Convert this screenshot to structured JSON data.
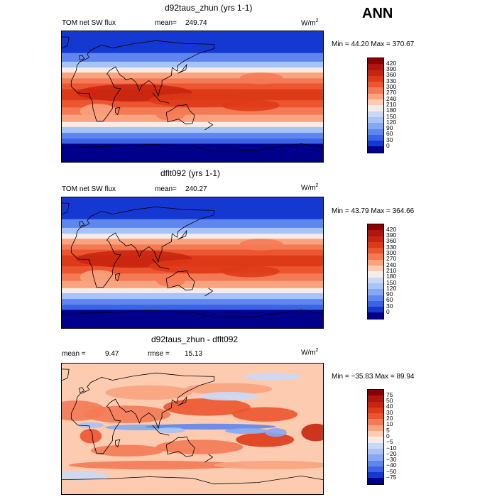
{
  "header": {
    "season": "ANN"
  },
  "panels": [
    {
      "title": "d92taus_zhun (yrs 1-1)",
      "left_label": "TOM net SW flux",
      "stat_label": "mean=",
      "stat_value": "249.74",
      "rmse_label": "",
      "rmse_value": "",
      "units": "W/m",
      "units_exp": "2",
      "min_max": "Min =  44.20 Max = 370.67",
      "kind": "field"
    },
    {
      "title": "dflt092 (yrs 1-1)",
      "left_label": "TOM net SW flux",
      "stat_label": "mean=",
      "stat_value": "240.27",
      "rmse_label": "",
      "rmse_value": "",
      "units": "W/m",
      "units_exp": "2",
      "min_max": "Min =  43.79 Max = 364.66",
      "kind": "field"
    },
    {
      "title": "d92taus_zhun - dflt092",
      "left_label": "mean =",
      "stat_label": "",
      "stat_value": "9.47",
      "rmse_label": "rmse =",
      "rmse_value": "15.13",
      "units": "W/m",
      "units_exp": "2",
      "min_max": "Min = −35.83 Max =  89.94",
      "kind": "diff"
    }
  ],
  "chart_data": [
    {
      "type": "heatmap",
      "title": "d92taus_zhun (yrs 1-1)",
      "variable": "TOM net SW flux",
      "units": "W/m^2",
      "mean": 249.74,
      "min": 44.2,
      "max": 370.67,
      "colorbar_levels": [
        "420",
        "390",
        "360",
        "330",
        "300",
        "270",
        "240",
        "210",
        "180",
        "150",
        "120",
        "90",
        "60",
        "30",
        "0"
      ],
      "colorbar_colors": [
        "#8b0000",
        "#b0150f",
        "#c8250f",
        "#dd3a18",
        "#ec5530",
        "#f47a55",
        "#f9a37f",
        "#fccbb0",
        "#f5ece8",
        "#c9d9f5",
        "#a8c3f5",
        "#86a8f2",
        "#5f86ee",
        "#3a63e6",
        "#1638d2",
        "#00008b"
      ]
    },
    {
      "type": "heatmap",
      "title": "dflt092 (yrs 1-1)",
      "variable": "TOM net SW flux",
      "units": "W/m^2",
      "mean": 240.27,
      "min": 43.79,
      "max": 364.66,
      "colorbar_levels": [
        "420",
        "390",
        "360",
        "330",
        "300",
        "270",
        "240",
        "210",
        "180",
        "150",
        "120",
        "90",
        "60",
        "30",
        "0"
      ],
      "colorbar_colors": [
        "#8b0000",
        "#b0150f",
        "#c8250f",
        "#dd3a18",
        "#ec5530",
        "#f47a55",
        "#f9a37f",
        "#fccbb0",
        "#f5ece8",
        "#c9d9f5",
        "#a8c3f5",
        "#86a8f2",
        "#5f86ee",
        "#3a63e6",
        "#1638d2",
        "#00008b"
      ]
    },
    {
      "type": "heatmap",
      "title": "d92taus_zhun - dflt092",
      "units": "W/m^2",
      "mean": 9.47,
      "rmse": 15.13,
      "min": -35.83,
      "max": 89.94,
      "colorbar_levels": [
        "75",
        "50",
        "40",
        "30",
        "20",
        "10",
        "5",
        "0",
        "−5",
        "−10",
        "−20",
        "−30",
        "−40",
        "−50",
        "−75"
      ],
      "colorbar_colors": [
        "#8b0000",
        "#b0150f",
        "#c8250f",
        "#dd3a18",
        "#ec5530",
        "#f47a55",
        "#f9a37f",
        "#fccbb0",
        "#f5ece8",
        "#c9d9f5",
        "#a8c3f5",
        "#86a8f2",
        "#5f86ee",
        "#3a63e6",
        "#1638d2",
        "#00008b"
      ]
    }
  ]
}
